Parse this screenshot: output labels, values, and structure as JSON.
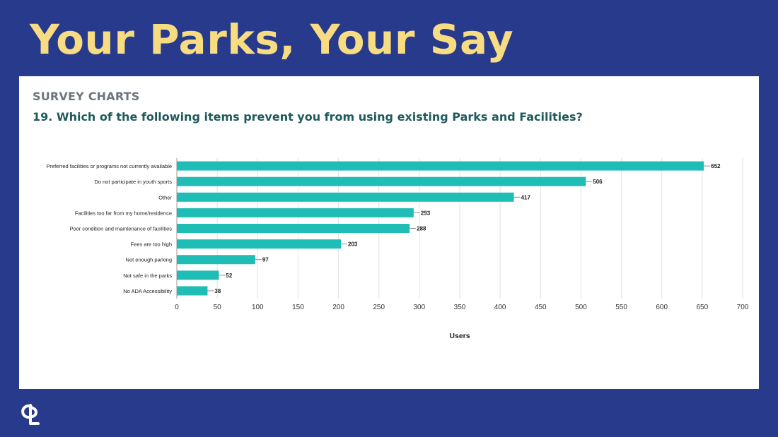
{
  "slide": {
    "title": "Your Parks, Your Say",
    "section_label": "SURVEY CHARTS",
    "question": "19. Which of the following items prevent you from using existing Parks and Facilities?",
    "logo_icon": "cpl-logo-icon"
  },
  "colors": {
    "background": "#283a8c",
    "title": "#f7dc82",
    "bar": "#1fbdb6",
    "question": "#1f5a5c"
  },
  "chart_data": {
    "type": "bar",
    "orientation": "horizontal",
    "categories": [
      "Preferred facilities or programs not currently available",
      "Do not participate in youth sports",
      "Other",
      "Facilities too far from my home/residence",
      "Poor condition and maintenance of facilities",
      "Fees are too high",
      "Not enough parking",
      "Not safe in the parks",
      "No ADA Accessibility"
    ],
    "values": [
      652,
      506,
      417,
      293,
      288,
      203,
      97,
      52,
      38
    ],
    "xlabel": "Users",
    "ylabel": "",
    "xlim": [
      0,
      700
    ],
    "xticks": [
      0,
      50,
      100,
      150,
      200,
      250,
      300,
      350,
      400,
      450,
      500,
      550,
      600,
      650,
      700
    ],
    "grid": true,
    "data_labels": true
  }
}
